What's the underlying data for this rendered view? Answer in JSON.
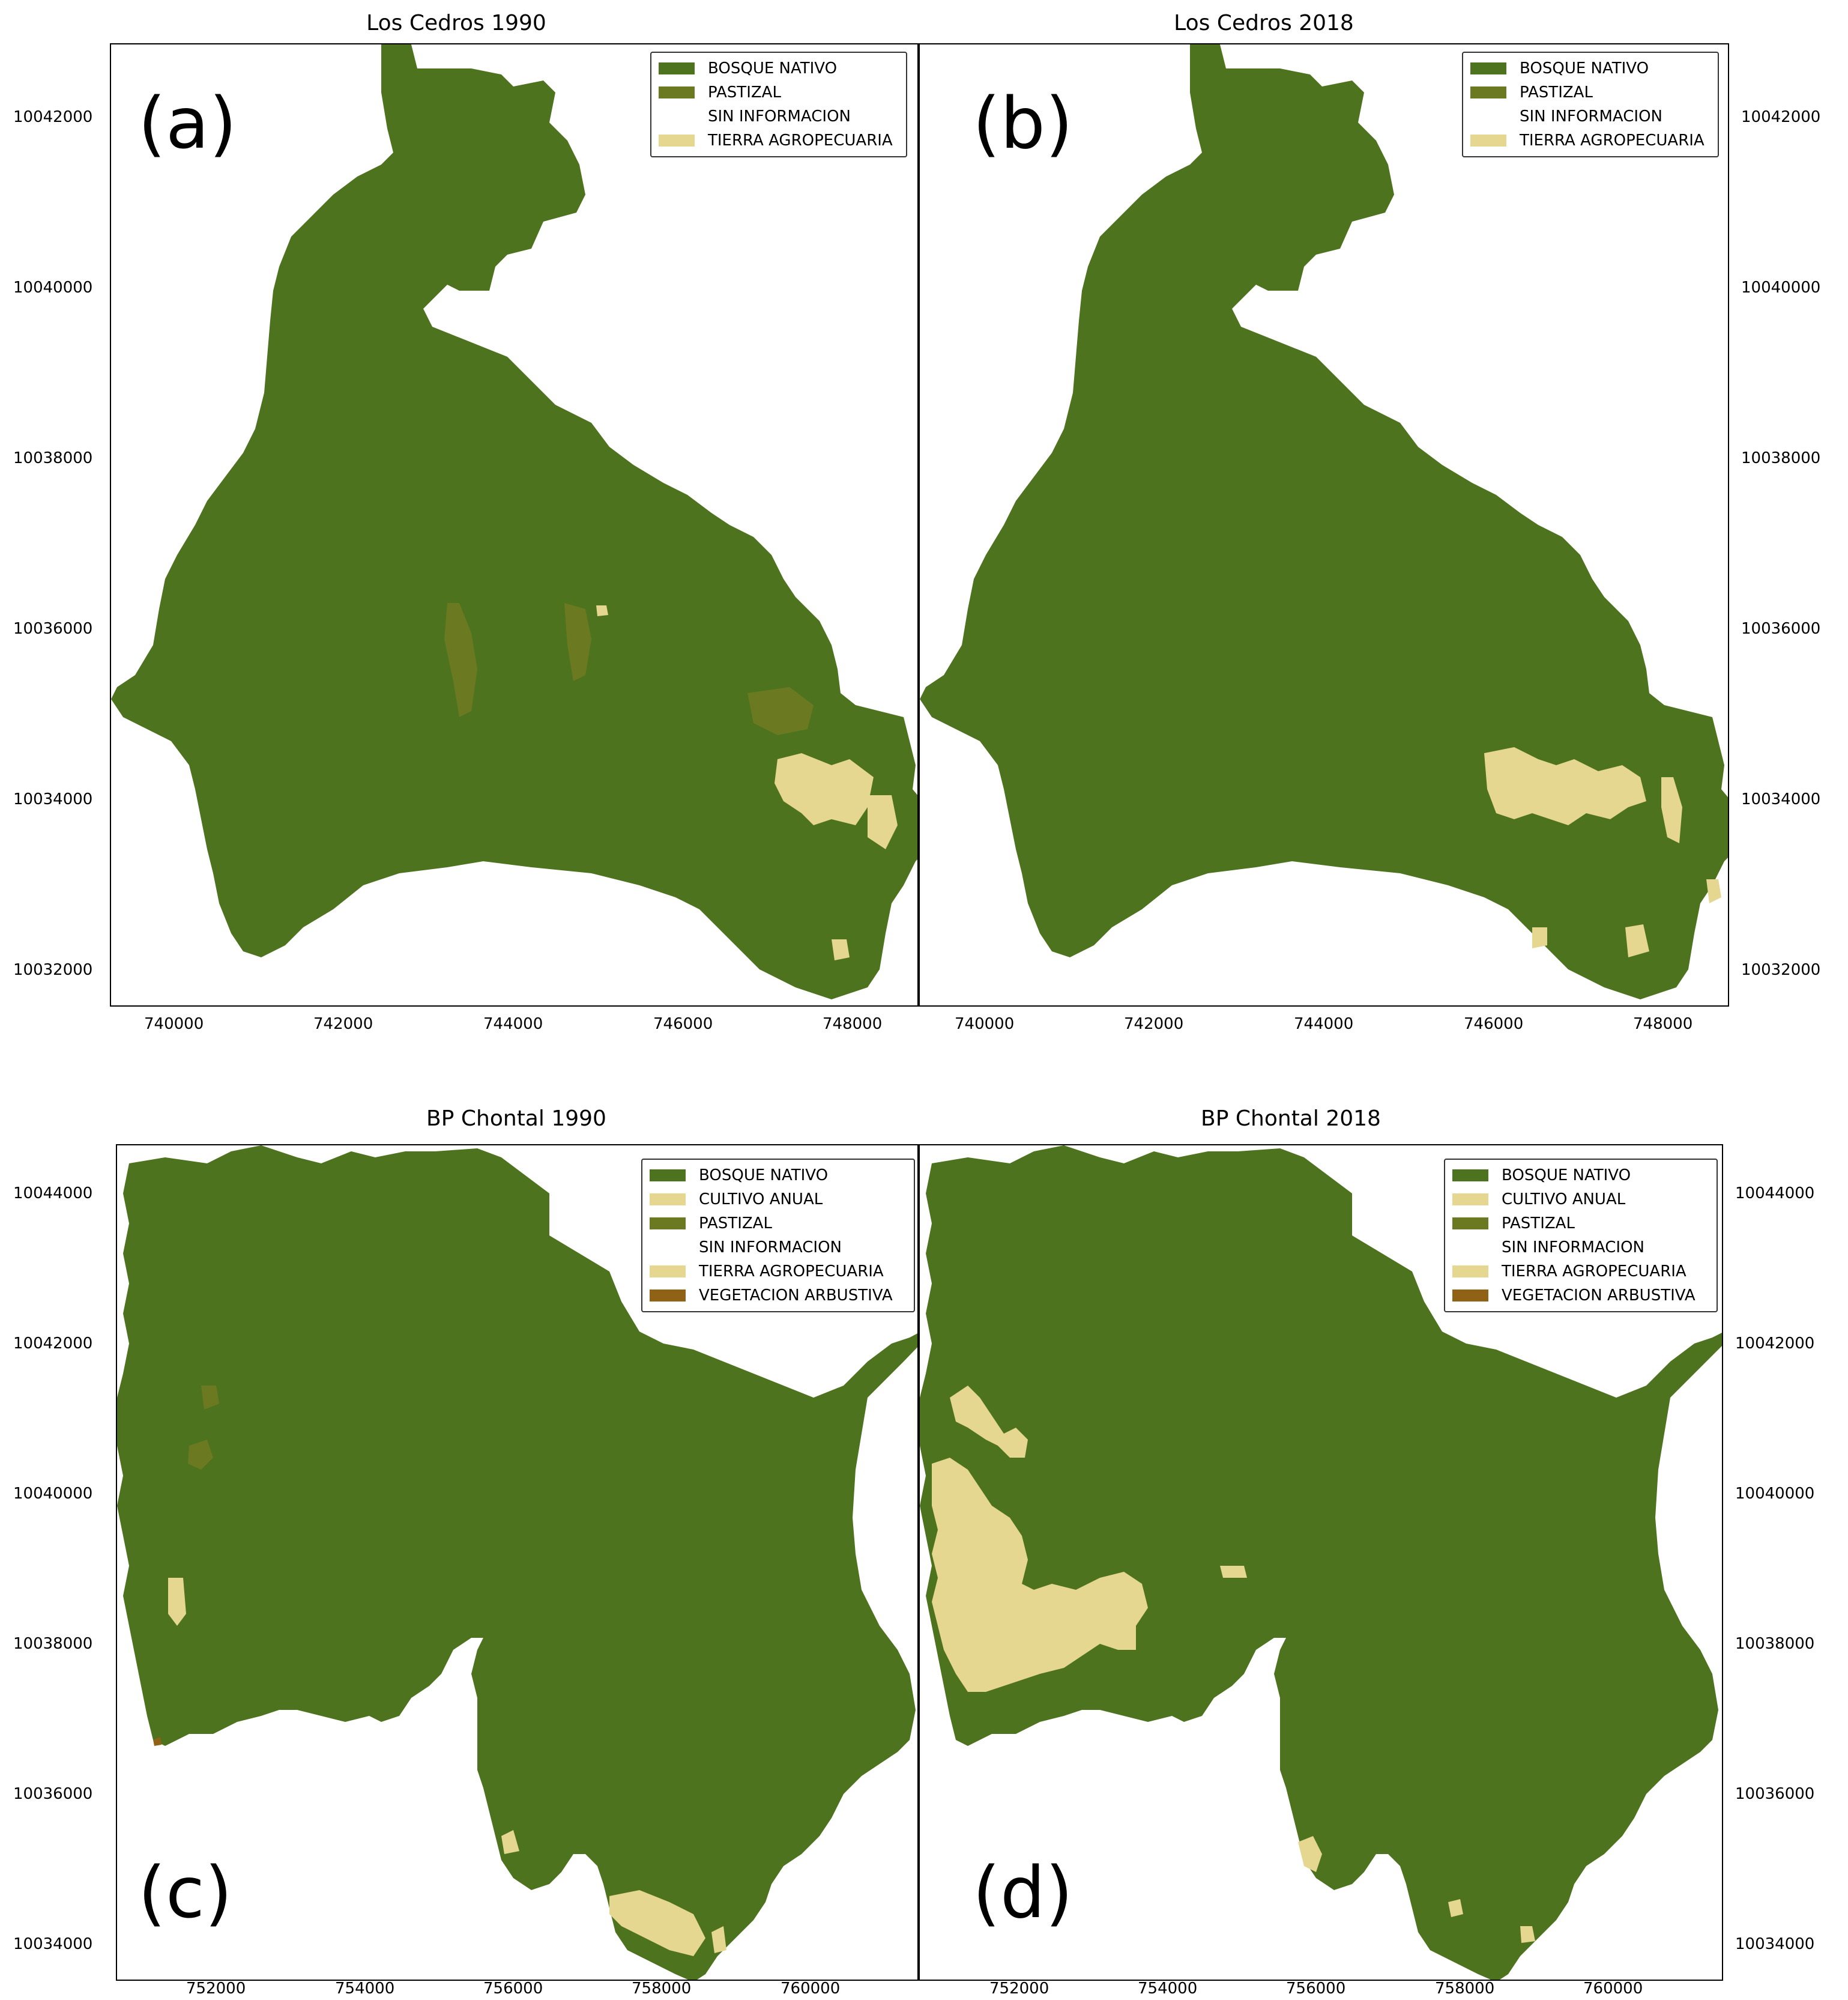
{
  "colors": {
    "bosque_nativo": "#4e731e",
    "pastizal": "#6b7a20",
    "sin_informacion": "#ffffff",
    "tierra_agropecuaria": "#e5d690",
    "cultivo_anual": "#e5d690",
    "vegetacion_arbustiva": "#8f6216"
  },
  "legend_top": [
    {
      "label": "BOSQUE NATIVO",
      "color": "#4e731e"
    },
    {
      "label": "PASTIZAL",
      "color": "#6b7a20"
    },
    {
      "label": "SIN INFORMACION",
      "color": "#ffffff"
    },
    {
      "label": "TIERRA AGROPECUARIA",
      "color": "#e5d690"
    }
  ],
  "legend_bottom": [
    {
      "label": "BOSQUE NATIVO",
      "color": "#4e731e"
    },
    {
      "label": "CULTIVO ANUAL",
      "color": "#e5d690"
    },
    {
      "label": "PASTIZAL",
      "color": "#6b7a20"
    },
    {
      "label": "SIN INFORMACION",
      "color": "#ffffff"
    },
    {
      "label": "TIERRA AGROPECUARIA",
      "color": "#e5d690"
    },
    {
      "label": "VEGETACION ARBUSTIVA",
      "color": "#8f6216"
    }
  ],
  "panels": [
    {
      "id": "a",
      "title": "Los Cedros 1990",
      "letter": "(a)"
    },
    {
      "id": "b",
      "title": "Los Cedros 2018",
      "letter": "(b)"
    },
    {
      "id": "c",
      "title": "BP Chontal 1990",
      "letter": "(c)"
    },
    {
      "id": "d",
      "title": "BP Chontal 2018",
      "letter": "(d)"
    }
  ],
  "axes": {
    "top_x_ticks": [
      "740000",
      "742000",
      "744000",
      "746000",
      "748000"
    ],
    "top_y_ticks": [
      "10042000",
      "10040000",
      "10038000",
      "10036000",
      "10034000",
      "10032000"
    ],
    "bottom_x_ticks": [
      "752000",
      "754000",
      "756000",
      "758000",
      "760000"
    ],
    "bottom_y_ticks": [
      "10044000",
      "10042000",
      "10040000",
      "10038000",
      "10036000",
      "10034000"
    ]
  }
}
